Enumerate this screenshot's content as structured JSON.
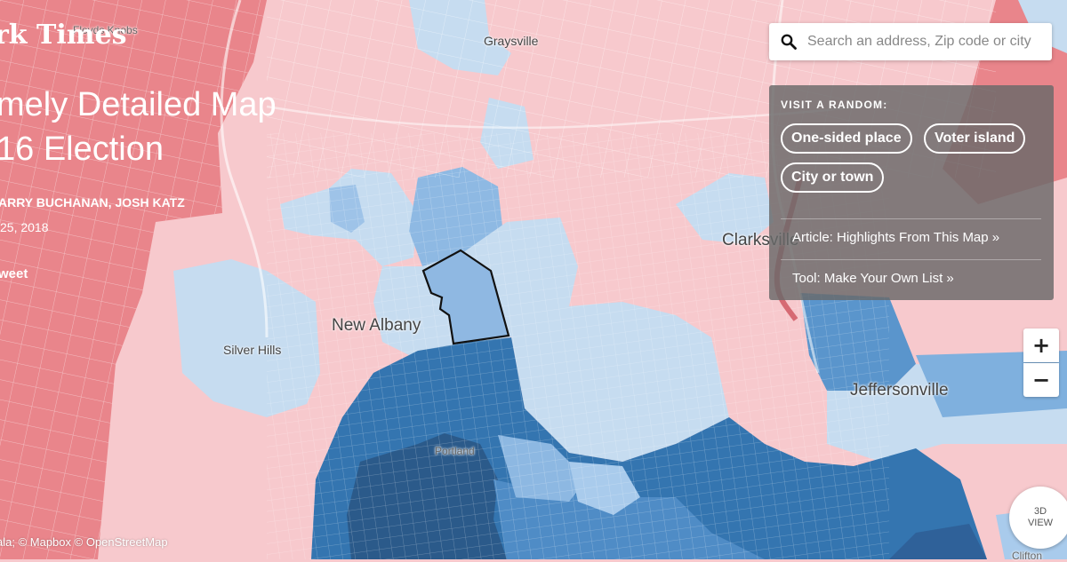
{
  "header": {
    "logo_text": "rk Times",
    "title_line1": "mely Detailed Map",
    "title_line2": "16 Election",
    "byline": "ARRY BUCHANAN, JOSH KATZ",
    "date": "25, 2018",
    "tweet_label": "weet"
  },
  "search": {
    "placeholder": "Search an address, Zip code or city",
    "value": ""
  },
  "random_panel": {
    "heading": "VISIT A RANDOM:",
    "buttons": [
      "One-sided place",
      "Voter island",
      "City or town"
    ],
    "links": [
      "Article: Highlights From This Map »",
      "Tool: Make Your Own List »"
    ]
  },
  "map": {
    "places": {
      "floyds_knobs": "Floyds Knobs",
      "graysville": "Graysville",
      "clarksville": "Clarksville",
      "new_albany": "New Albany",
      "silver_hills": "Silver Hills",
      "jeffersonville": "Jeffersonville",
      "portland": "Portland",
      "clifton": "Clifton"
    },
    "colors": {
      "strong_rep": "#e9858b",
      "lean_rep": "#f7c8cd",
      "lean_dem": "#c6dcf0",
      "mid_dem": "#7fb0de",
      "strong_dem": "#3b79b3",
      "very_strong_dem": "#2b5a8a",
      "river": "#2f6aa3"
    }
  },
  "controls": {
    "zoom_in": "+",
    "zoom_out": "−",
    "view3d_line1": "3D",
    "view3d_line2": "VIEW"
  },
  "attribution": "ala; © Mapbox © OpenStreetMap"
}
